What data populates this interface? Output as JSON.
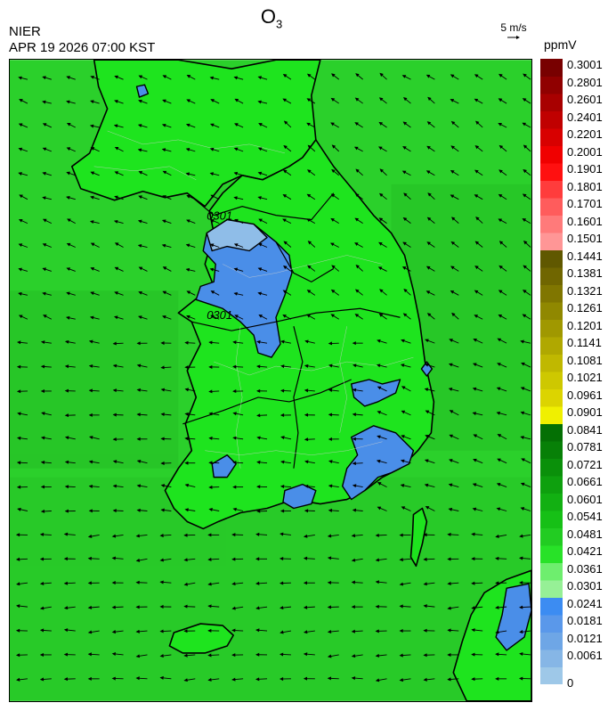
{
  "header": {
    "title_main": "O",
    "title_sub": "3",
    "agency": "NIER",
    "datetime": "APR 19 2026 07:00 KST",
    "wind_ref_label": "5 m/s",
    "unit": "ppmV"
  },
  "map": {
    "contour_labels": [
      "0301",
      "0301"
    ],
    "colors": {
      "sea_green": "#2ecc2e",
      "land_green": "#1fdc1f",
      "ozone_blue": "#4a90e8",
      "ozone_light_blue": "#8ab8e8",
      "outline": "#000000"
    }
  },
  "legend": {
    "colors": [
      "#9ec8e8",
      "#86b6e6",
      "#6ea6e6",
      "#5a98ea",
      "#3c8cf2",
      "#96f096",
      "#6eee6e",
      "#28e228",
      "#22cc22",
      "#16c016",
      "#12b012",
      "#0ea00e",
      "#0a900a",
      "#078007",
      "#047004",
      "#f0f000",
      "#dcd400",
      "#cec800",
      "#c0b800",
      "#b0a800",
      "#a09800",
      "#908800",
      "#807600",
      "#706600",
      "#605800",
      "#ff9696",
      "#ff7a7a",
      "#ff5c5c",
      "#ff3c3c",
      "#ff1010",
      "#f00000",
      "#d80000",
      "#c00000",
      "#a80000",
      "#900000",
      "#780000"
    ],
    "labels": [
      "0",
      "0.0061",
      "0.0121",
      "0.0181",
      "0.0241",
      "0.0301",
      "0.0361",
      "0.0421",
      "0.0481",
      "0.0541",
      "0.0601",
      "0.0661",
      "0.0721",
      "0.0781",
      "0.0841",
      "0.0901",
      "0.0961",
      "0.1021",
      "0.1081",
      "0.1141",
      "0.1201",
      "0.1261",
      "0.1321",
      "0.1381",
      "0.1441",
      "0.1501",
      "0.1601",
      "0.1701",
      "0.1801",
      "0.1901",
      "0.2001",
      "0.2201",
      "0.2401",
      "0.2601",
      "0.2801",
      "0.3001"
    ]
  }
}
